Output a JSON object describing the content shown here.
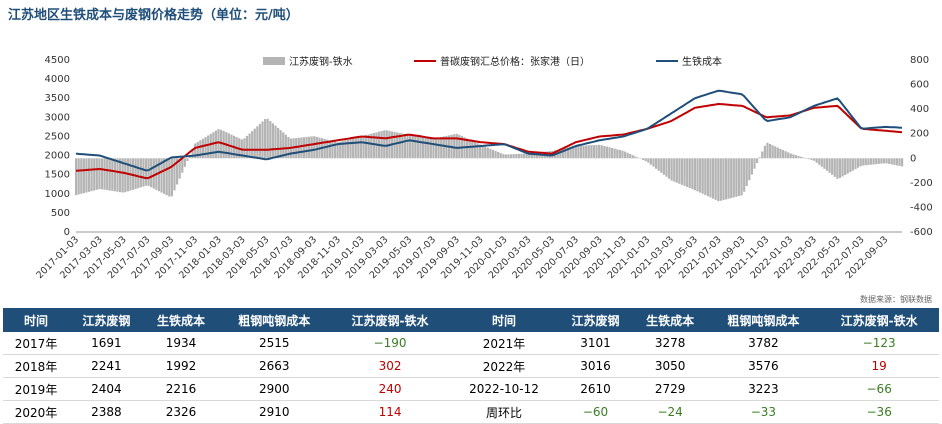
{
  "title": "江苏地区生铁成本与废钢价格走势（单位：元/吨）",
  "source": "数据来源：钢联数据",
  "chart_data": {
    "type": "line",
    "legend": [
      "江苏废钢-铁水",
      "普碳废钢汇总价格：张家港（日）",
      "生铁成本"
    ],
    "legend_placement": "top",
    "colors": {
      "bar": "#b4b4b4",
      "scrap": "#c00000",
      "iron": "#1f4e79"
    },
    "y_left": {
      "min": 0,
      "max": 4500,
      "step": 500,
      "ticks": [
        "0",
        "500",
        "1000",
        "1500",
        "2000",
        "2500",
        "3000",
        "3500",
        "4000",
        "4500"
      ]
    },
    "y_right": {
      "min": -600,
      "max": 800,
      "step": 200,
      "ticks": [
        "-600",
        "-400",
        "-200",
        "0",
        "200",
        "400",
        "600",
        "800"
      ]
    },
    "x_ticks": [
      "2017-01-03",
      "2017-03-03",
      "2017-05-03",
      "2017-07-03",
      "2017-09-03",
      "2017-11-03",
      "2018-01-03",
      "2018-03-03",
      "2018-05-03",
      "2018-07-03",
      "2018-09-03",
      "2018-11-03",
      "2019-01-03",
      "2019-03-03",
      "2019-05-03",
      "2019-07-03",
      "2019-09-03",
      "2019-11-03",
      "2020-01-03",
      "2020-03-03",
      "2020-05-03",
      "2020-07-03",
      "2020-09-03",
      "2020-11-03",
      "2021-01-03",
      "2021-03-03",
      "2021-05-03",
      "2021-07-03",
      "2021-09-03",
      "2021-11-03",
      "2022-01-03",
      "2022-03-03",
      "2022-05-03",
      "2022-07-03",
      "2022-09-03"
    ],
    "series": [
      {
        "name": "生铁成本",
        "axis": "left",
        "months": [
          0,
          2,
          4,
          6,
          8,
          10,
          12,
          14,
          16,
          18,
          20,
          22,
          24,
          26,
          28,
          30,
          32,
          34,
          36,
          38,
          40,
          42,
          44,
          46,
          48,
          50,
          52,
          54,
          56,
          58,
          60,
          62,
          64,
          66,
          68,
          69.4
        ],
        "values": [
          2050,
          2000,
          1800,
          1600,
          1950,
          2000,
          2100,
          2000,
          1900,
          2050,
          2150,
          2300,
          2350,
          2250,
          2400,
          2300,
          2200,
          2250,
          2300,
          2050,
          2000,
          2250,
          2400,
          2500,
          2700,
          3100,
          3500,
          3700,
          3600,
          2900,
          3000,
          3300,
          3500,
          2700,
          2750,
          2729
        ]
      },
      {
        "name": "普碳废钢汇总价格：张家港（日）",
        "axis": "left",
        "months": [
          0,
          2,
          4,
          6,
          8,
          10,
          12,
          14,
          16,
          18,
          20,
          22,
          24,
          26,
          28,
          30,
          32,
          34,
          36,
          38,
          40,
          42,
          44,
          46,
          48,
          50,
          52,
          54,
          56,
          58,
          60,
          62,
          64,
          66,
          68,
          69.4
        ],
        "values": [
          1600,
          1650,
          1550,
          1400,
          1700,
          2200,
          2350,
          2150,
          2150,
          2200,
          2300,
          2400,
          2500,
          2450,
          2550,
          2450,
          2450,
          2350,
          2300,
          2100,
          2050,
          2350,
          2500,
          2550,
          2700,
          2900,
          3250,
          3350,
          3300,
          3000,
          3050,
          3250,
          3300,
          2700,
          2650,
          2610
        ]
      },
      {
        "name": "江苏废钢-铁水",
        "axis": "right",
        "type": "bar",
        "months": [
          0,
          2,
          4,
          6,
          8,
          10,
          12,
          14,
          16,
          18,
          20,
          22,
          24,
          26,
          28,
          30,
          32,
          34,
          36,
          38,
          40,
          42,
          44,
          46,
          48,
          50,
          52,
          54,
          56,
          58,
          60,
          62,
          64,
          66,
          68,
          69.4
        ],
        "values": [
          -300,
          -250,
          -280,
          -220,
          -320,
          120,
          240,
          150,
          330,
          160,
          180,
          130,
          180,
          230,
          190,
          160,
          200,
          110,
          30,
          40,
          60,
          100,
          110,
          60,
          -30,
          -180,
          -260,
          -350,
          -300,
          130,
          40,
          -20,
          -170,
          -60,
          -40,
          -66
        ]
      }
    ]
  },
  "table": {
    "headers": [
      "时间",
      "江苏废钢",
      "生铁成本",
      "粗钢吨钢成本",
      "江苏废钢-铁水",
      "时间",
      "江苏废钢",
      "生铁成本",
      "粗钢吨钢成本",
      "江苏废钢-铁水"
    ],
    "rows": [
      [
        "2017年",
        "1691",
        "1934",
        "2515",
        "−190",
        "2021年",
        "3101",
        "3278",
        "3782",
        "−123"
      ],
      [
        "2018年",
        "2241",
        "1992",
        "2663",
        "302",
        "2022年",
        "3016",
        "3050",
        "3576",
        "19"
      ],
      [
        "2019年",
        "2404",
        "2216",
        "2900",
        "240",
        "2022-10-12",
        "2610",
        "2729",
        "3223",
        "−66"
      ],
      [
        "2020年",
        "2388",
        "2326",
        "2910",
        "114",
        "周环比",
        "−60",
        "−24",
        "−33",
        "−36"
      ]
    ],
    "row_colors": [
      [
        "",
        "",
        "",
        "",
        "neg",
        "",
        "",
        "",
        "",
        "neg"
      ],
      [
        "",
        "",
        "",
        "",
        "pos",
        "",
        "",
        "",
        "",
        "pos"
      ],
      [
        "",
        "",
        "",
        "",
        "pos",
        "",
        "",
        "",
        "",
        "neg"
      ],
      [
        "",
        "",
        "",
        "",
        "pos",
        "",
        "neg",
        "neg",
        "neg",
        "neg"
      ]
    ]
  }
}
